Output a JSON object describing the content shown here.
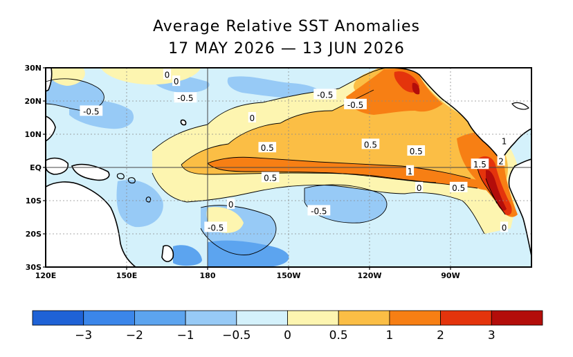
{
  "title": "Average Relative SST Anomalies",
  "subtitle": "17 MAY 2026 — 13 JUN 2026",
  "lat_labels": [
    "30N",
    "20N",
    "10N",
    "EQ",
    "10S",
    "20S",
    "30S"
  ],
  "lon_labels": [
    "120E",
    "150E",
    "180",
    "150W",
    "120W",
    "90W"
  ],
  "contour_labels": [
    {
      "text": "0",
      "lon": 160,
      "lat": 28
    },
    {
      "text": "0",
      "lon": 163,
      "lat": 26
    },
    {
      "text": "-0.5",
      "lon": 166,
      "lat": 21
    },
    {
      "text": "-0.5",
      "lon": 135,
      "lat": 17
    },
    {
      "text": "0",
      "lon": 188,
      "lat": 15
    },
    {
      "text": "-0.5",
      "lon": 212,
      "lat": 22
    },
    {
      "text": "-0.5",
      "lon": 222,
      "lat": 19
    },
    {
      "text": "0.5",
      "lon": 193,
      "lat": 6
    },
    {
      "text": "0.5",
      "lon": 227,
      "lat": 7
    },
    {
      "text": "0.5",
      "lon": 242,
      "lat": 5
    },
    {
      "text": "1",
      "lon": 271,
      "lat": 8
    },
    {
      "text": "1.5",
      "lon": 263,
      "lat": 1
    },
    {
      "text": "2",
      "lon": 270,
      "lat": 2
    },
    {
      "text": "1",
      "lon": 240,
      "lat": -1
    },
    {
      "text": "0.5",
      "lon": 194,
      "lat": -3
    },
    {
      "text": "0",
      "lon": 243,
      "lat": -6
    },
    {
      "text": "0.5",
      "lon": 256,
      "lat": -6
    },
    {
      "text": "0",
      "lon": 181,
      "lat": -11
    },
    {
      "text": "-0.5",
      "lon": 210,
      "lat": -13
    },
    {
      "text": "-0.5",
      "lon": 176,
      "lat": -18
    },
    {
      "text": "0",
      "lon": 271,
      "lat": -18
    }
  ],
  "colorbar": {
    "colors": [
      "#1f62d6",
      "#3b86ea",
      "#5ca4ef",
      "#97caf6",
      "#d4f1fb",
      "#fdf5b0",
      "#fbbe45",
      "#f77f14",
      "#e4340c",
      "#b30d0a"
    ],
    "tick_labels": [
      "−3",
      "−2",
      "−1",
      "−0.5",
      "0",
      "0.5",
      "1",
      "2",
      "3"
    ]
  },
  "colors": {
    "land": "#ffffff",
    "coastline": "#000000",
    "grid": "#8a8a8a"
  }
}
